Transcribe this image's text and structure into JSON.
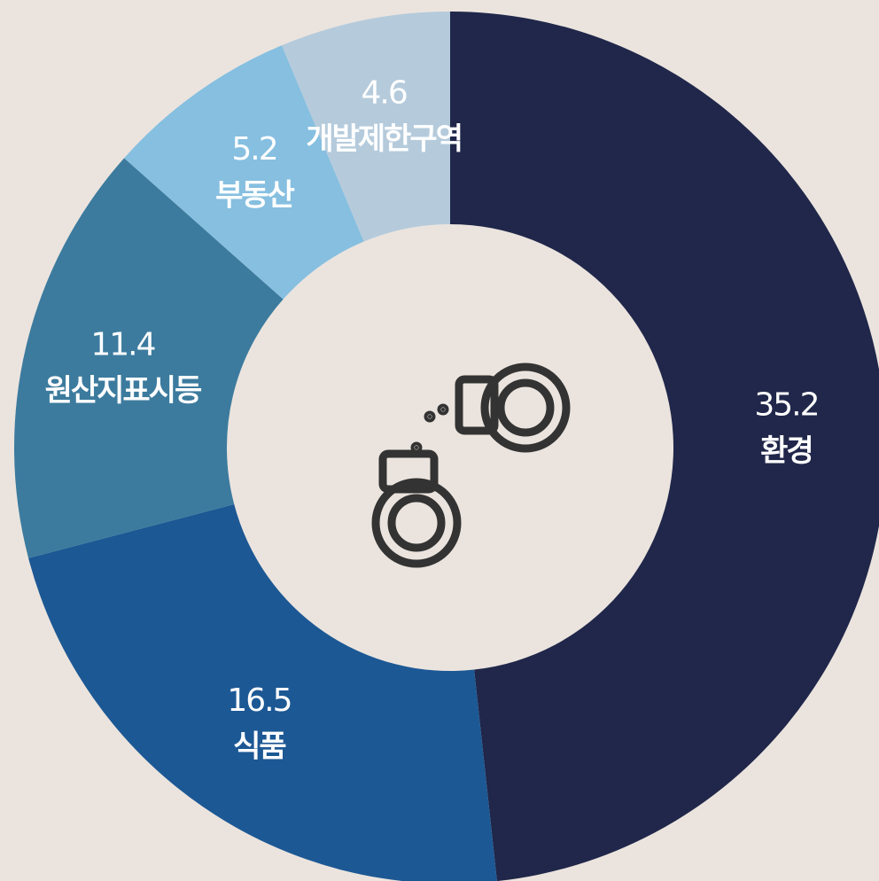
{
  "chart_data": {
    "type": "pie",
    "categories": [
      "환경",
      "식품",
      "원산지표시등",
      "부동산",
      "개발제한구역"
    ],
    "values": [
      35.2,
      16.5,
      11.4,
      5.2,
      4.6
    ],
    "colors": [
      "#20274a",
      "#1c5894",
      "#3c7b9e",
      "#86bfe0",
      "#b5cbdc"
    ],
    "donut": true
  }
}
